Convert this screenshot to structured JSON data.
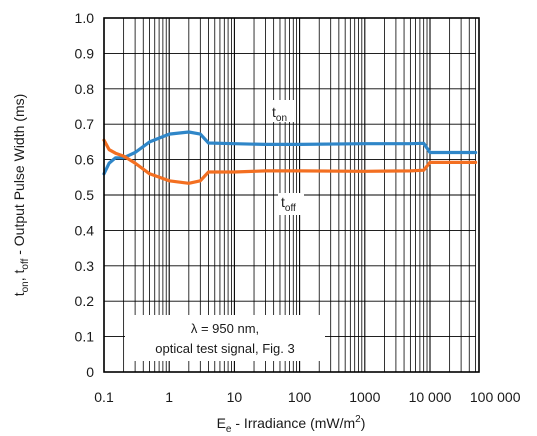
{
  "chart_data": {
    "type": "line",
    "xscale": "log",
    "xlim": [
      0.1,
      50000
    ],
    "ylim": [
      0,
      1.0
    ],
    "grid": true,
    "xlabel": {
      "main": "E",
      "sub": "e",
      "rest": " - Irradiance (mW/m",
      "sup": "2",
      "end": ")"
    },
    "ylabel": {
      "p1": "t",
      "s1": "on",
      "p2": ", t",
      "s2": "off",
      "p3": " - Output Pulse Width (ms)"
    },
    "x_ticks": [
      {
        "value": 0.1,
        "label": "0.1"
      },
      {
        "value": 1,
        "label": "1"
      },
      {
        "value": 10,
        "label": "10"
      },
      {
        "value": 100,
        "label": "100"
      },
      {
        "value": 1000,
        "label": "1000"
      },
      {
        "value": 10000,
        "label": "10 000"
      },
      {
        "value": 100000,
        "label": "100 000"
      }
    ],
    "y_ticks": [
      {
        "value": 0,
        "label": "0"
      },
      {
        "value": 0.1,
        "label": "0.1"
      },
      {
        "value": 0.2,
        "label": "0.2"
      },
      {
        "value": 0.3,
        "label": "0.3"
      },
      {
        "value": 0.4,
        "label": "0.4"
      },
      {
        "value": 0.5,
        "label": "0.5"
      },
      {
        "value": 0.6,
        "label": "0.6"
      },
      {
        "value": 0.7,
        "label": "0.7"
      },
      {
        "value": 0.8,
        "label": "0.8"
      },
      {
        "value": 0.9,
        "label": "0.9"
      },
      {
        "value": 1.0,
        "label": "1.0"
      }
    ],
    "series": [
      {
        "name_main": "t",
        "name_sub": "on",
        "color": "#2f86c8",
        "x": [
          0.1,
          0.12,
          0.15,
          0.2,
          0.3,
          0.5,
          1,
          2,
          3,
          4,
          10,
          30,
          100,
          1000,
          5000,
          8000,
          10000,
          15000,
          50000
        ],
        "y": [
          0.56,
          0.59,
          0.605,
          0.605,
          0.62,
          0.65,
          0.672,
          0.678,
          0.672,
          0.647,
          0.645,
          0.643,
          0.643,
          0.645,
          0.645,
          0.646,
          0.62,
          0.62,
          0.62
        ]
      },
      {
        "name_main": "t",
        "name_sub": "off",
        "color": "#f36f21",
        "x": [
          0.1,
          0.12,
          0.15,
          0.2,
          0.3,
          0.5,
          1,
          2,
          3,
          4,
          10,
          30,
          100,
          1000,
          5000,
          8000,
          10000,
          15000,
          50000
        ],
        "y": [
          0.655,
          0.628,
          0.618,
          0.61,
          0.59,
          0.56,
          0.54,
          0.533,
          0.54,
          0.565,
          0.565,
          0.568,
          0.568,
          0.567,
          0.568,
          0.57,
          0.592,
          0.592,
          0.592
        ]
      }
    ],
    "annotation": {
      "line1": "λ = 950 nm,",
      "line2": "optical test signal, Fig. 3"
    }
  }
}
